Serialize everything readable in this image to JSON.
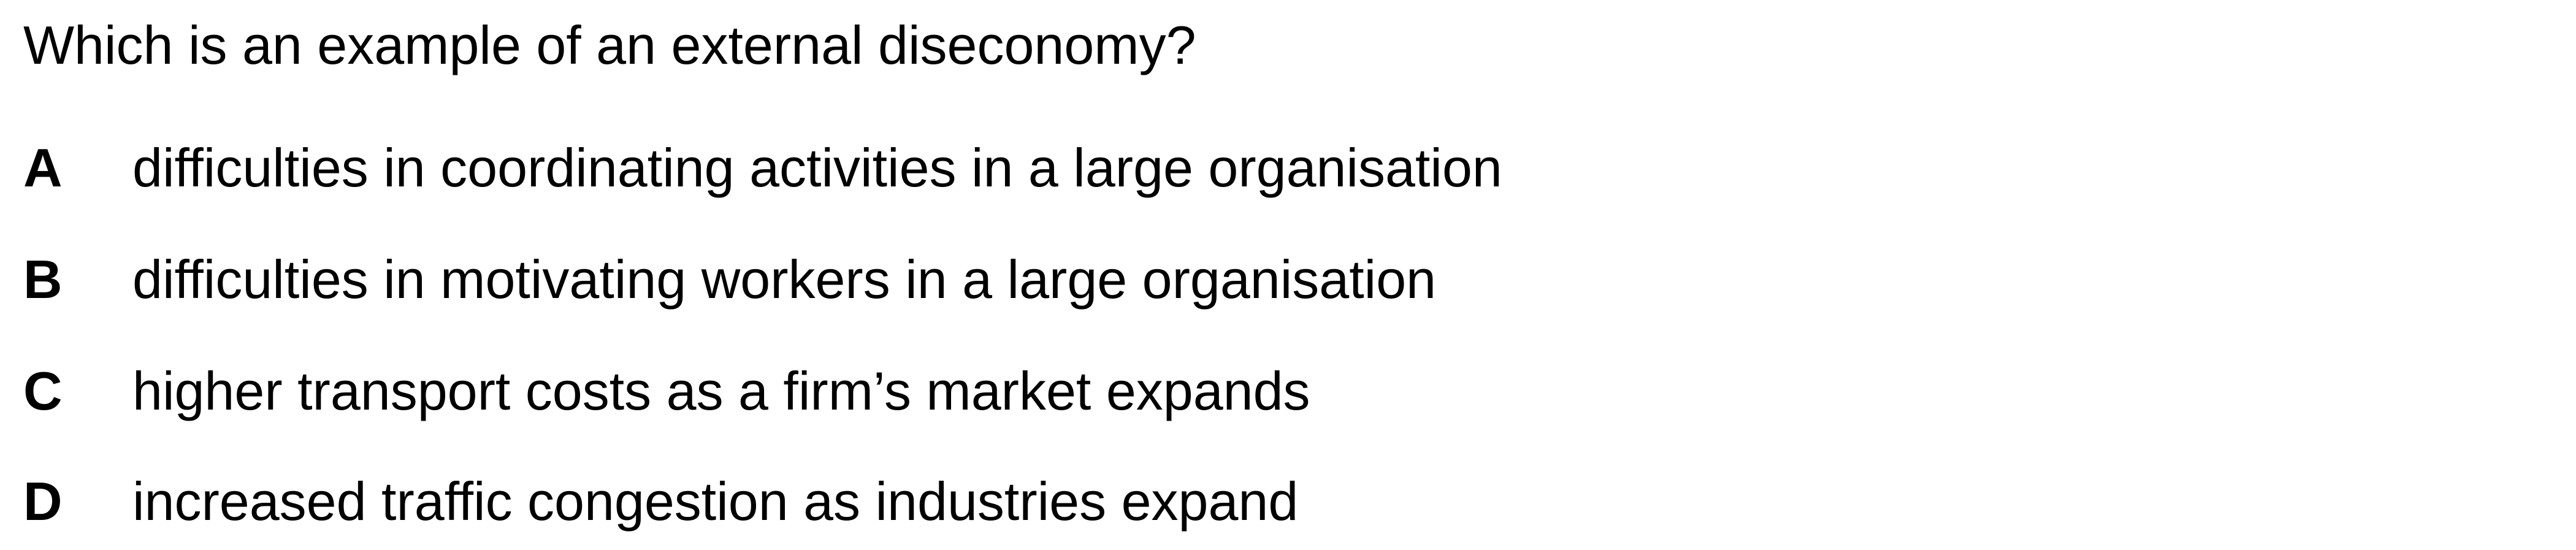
{
  "question": {
    "text": "Which is an example of an external diseconomy?"
  },
  "options": [
    {
      "letter": "A",
      "text": "difficulties in coordinating activities in a large organisation"
    },
    {
      "letter": "B",
      "text": "difficulties in motivating workers in a large organisation"
    },
    {
      "letter": "C",
      "text": "higher transport costs as a firm’s market expands"
    },
    {
      "letter": "D",
      "text": "increased traffic congestion as industries expand"
    }
  ]
}
